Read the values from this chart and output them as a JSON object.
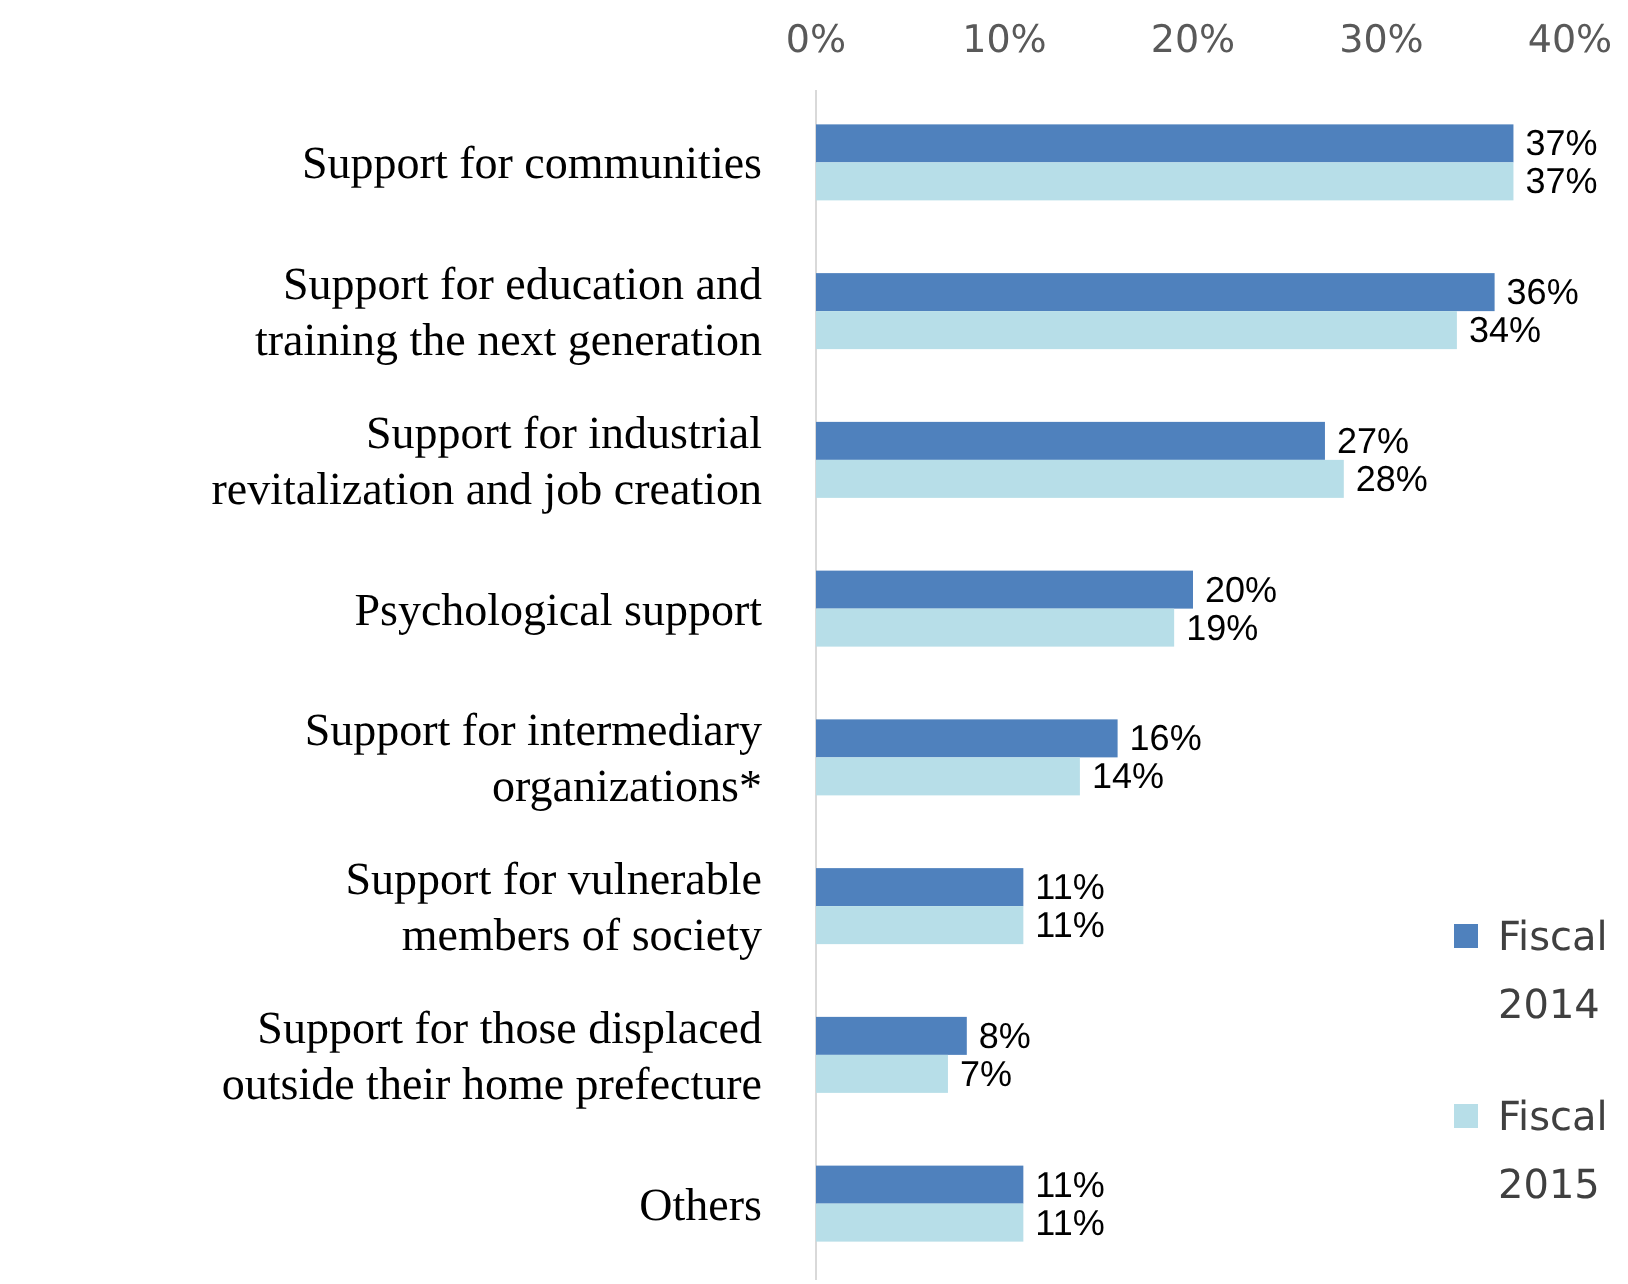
{
  "chart_data": {
    "type": "bar",
    "orientation": "horizontal",
    "categories": [
      "Support for communities",
      "Support for education and\ntraining the next generation",
      "Support for industrial\nrevitalization and job creation",
      "Psychological support",
      "Support for intermediary\norganizations*",
      "Support for vulnerable\nmembers of society",
      "Support for those displaced\noutside their home prefecture",
      "Others"
    ],
    "series": [
      {
        "name": "Fiscal 2014",
        "color": "#4f81bd",
        "values": [
          37,
          36,
          27,
          20,
          16,
          11,
          8,
          11
        ],
        "value_labels": [
          "37%",
          "36%",
          "27%",
          "20%",
          "16%",
          "11%",
          "8%",
          "11%"
        ]
      },
      {
        "name": "Fiscal 2015",
        "color": "#b7dee8",
        "values": [
          37,
          34,
          28,
          19,
          14,
          11,
          7,
          11
        ],
        "value_labels": [
          "37%",
          "34%",
          "28%",
          "19%",
          "14%",
          "11%",
          "7%",
          "11%"
        ]
      }
    ],
    "xlim": [
      0,
      40
    ],
    "xticks": [
      {
        "value": 0,
        "label": "0%"
      },
      {
        "value": 10,
        "label": "10%"
      },
      {
        "value": 20,
        "label": "20%"
      },
      {
        "value": 30,
        "label": "30%"
      },
      {
        "value": 40,
        "label": "40%"
      }
    ],
    "grid": false,
    "legend": "bottom right"
  }
}
